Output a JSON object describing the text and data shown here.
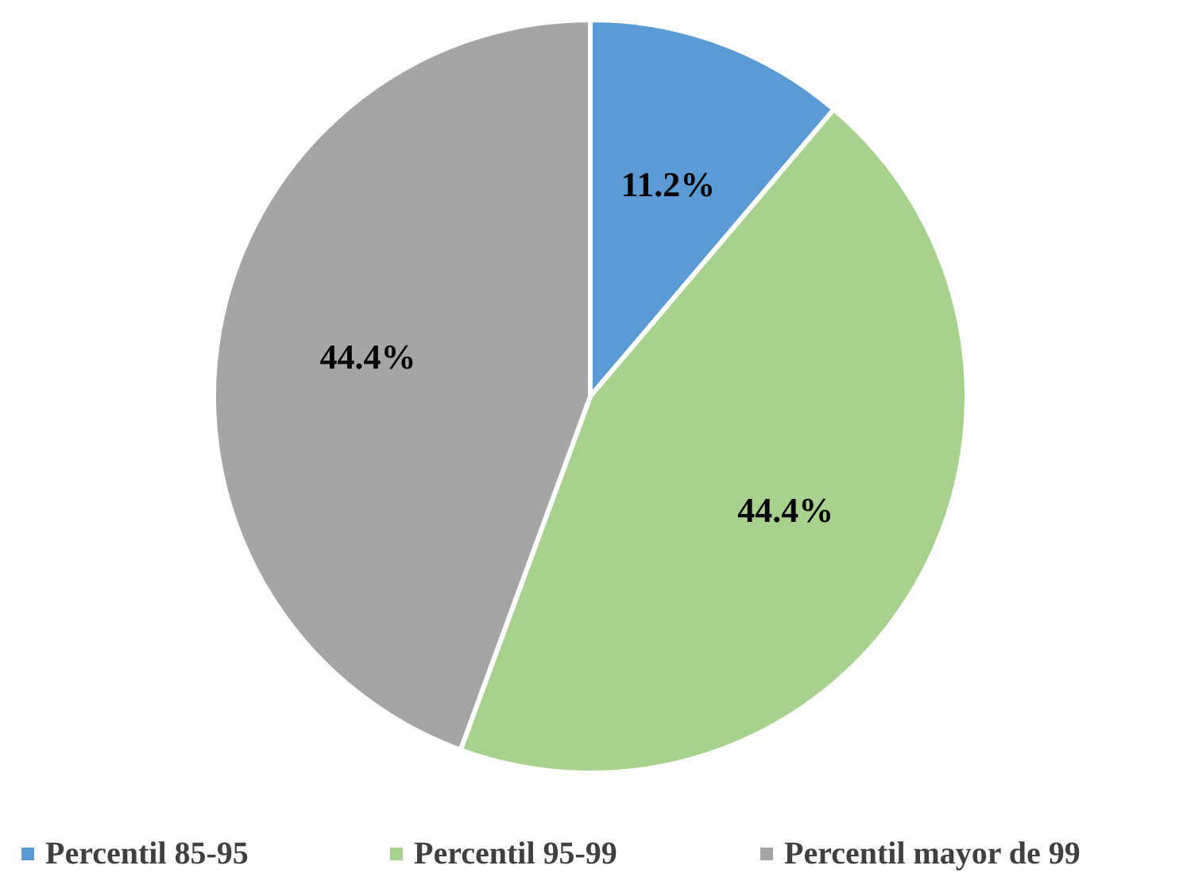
{
  "chart_data": {
    "type": "pie",
    "categories": [
      "Percentil 85-95",
      "Percentil 95-99",
      "Percentil mayor de 99"
    ],
    "values": [
      11.2,
      44.4,
      44.4
    ],
    "value_labels": [
      "11.2%",
      "44.4%",
      "44.4%"
    ],
    "colors": [
      "#5b9bd5",
      "#a9d18e",
      "#a5a5a5"
    ],
    "legend": "bottom"
  }
}
